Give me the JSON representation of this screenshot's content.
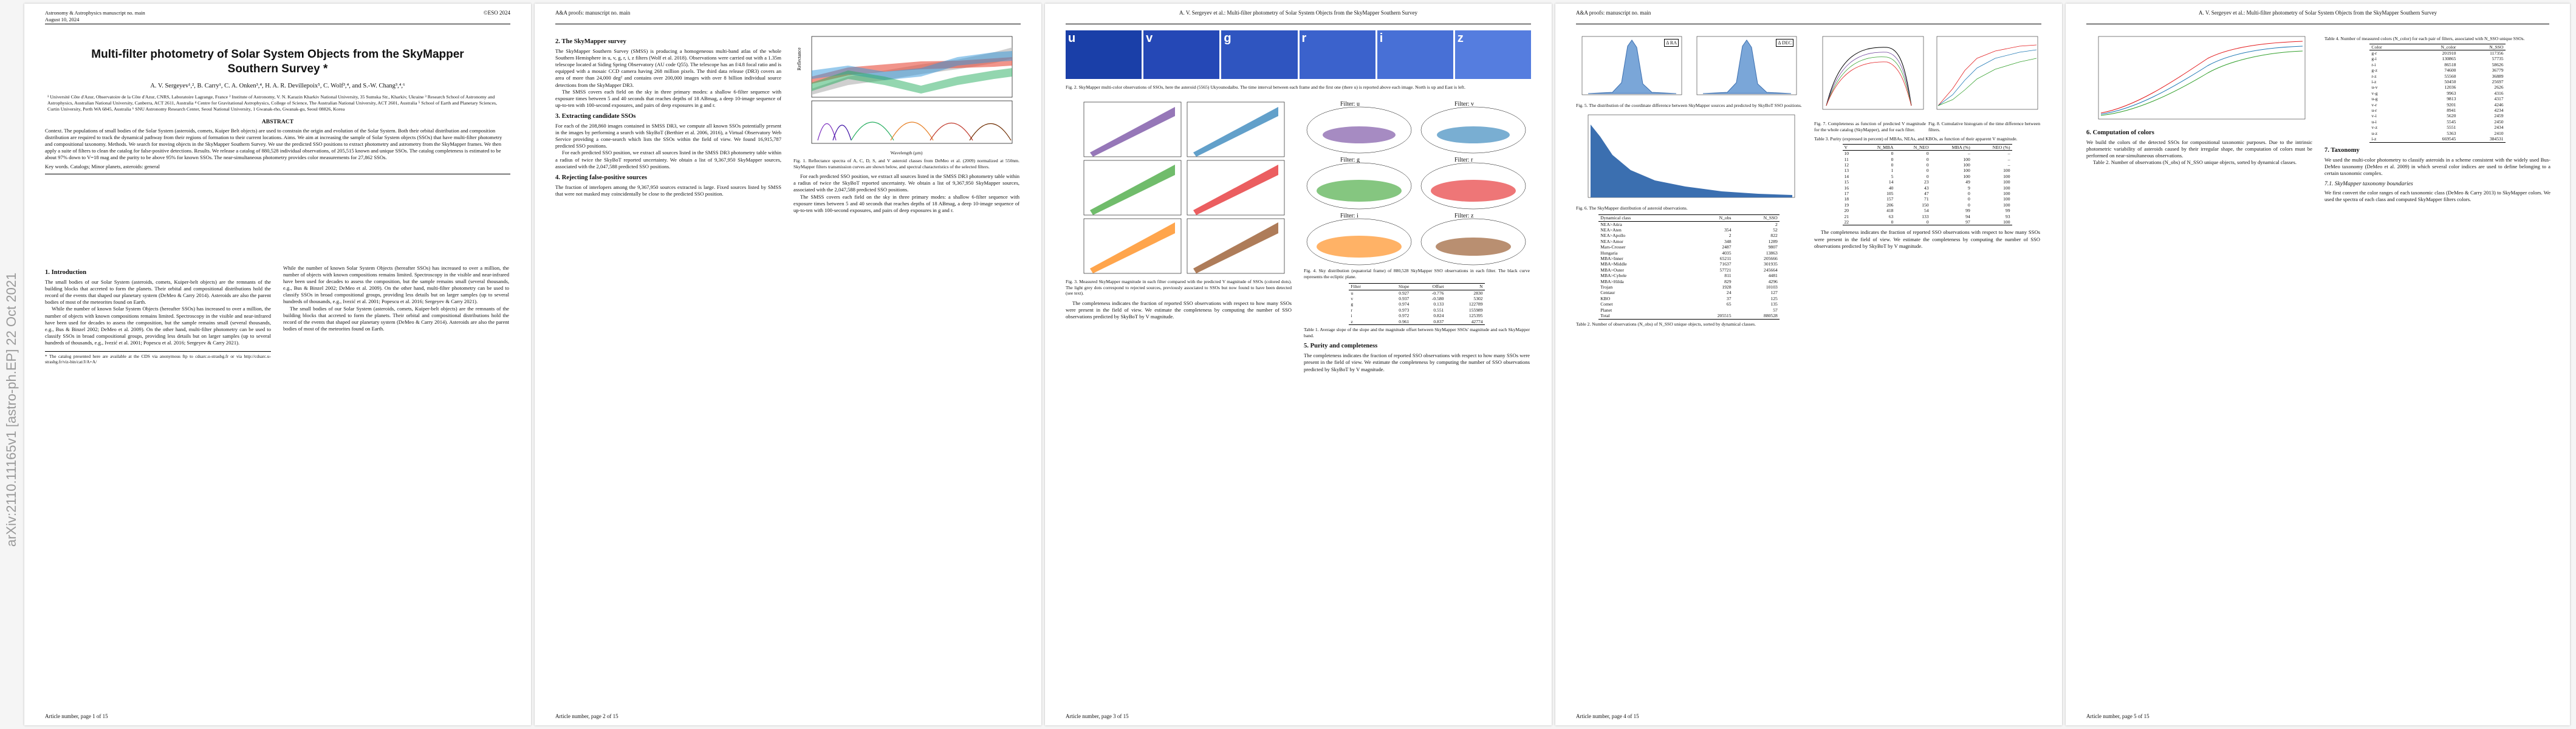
{
  "arxiv_stamp": "arXiv:2110.11165v1  [astro-ph.EP]  22 Oct 2021",
  "pages": [
    {
      "header_left": "Astronomy & Astrophysics manuscript no. main",
      "header_date": "August 10, 2024",
      "header_right": "©ESO 2024",
      "title": "Multi-filter photometry of Solar System Objects from the SkyMapper Southern Survey *",
      "authors": "A. V. Sergeyev¹,², B. Carry¹, C. A. Onken³,⁴, H. A. R. Devillepoix⁵, C. Wolf³,⁴, and S.-W. Chang³,⁴,⁶",
      "affiliations": "¹ Université Côte d'Azur, Observatoire de la Côte d'Azur, CNRS, Laboratoire Lagrange, France  ² Institute of Astronomy, V. N. Karazin Kharkiv National University, 35 Sumska Str., Kharkiv, Ukraine  ³ Research School of Astronomy and Astrophysics, Australian National University, Canberra, ACT 2611, Australia  ⁴ Centre for Gravitational Astrophysics, College of Science, The Australian National University, ACT 2601, Australia  ⁵ School of Earth and Planetary Sciences, Curtin University, Perth WA 6845, Australia  ⁶ SNU Astronomy Research Center, Seoul National University, 1 Gwanak-rho, Gwanak-gu, Seoul 08826, Korea",
      "abstract_title": "ABSTRACT",
      "abstract": "Context. The populations of small bodies of the Solar System (asteroids, comets, Kuiper Belt objects) are used to constrain the origin and evolution of the Solar System. Both their orbital distribution and composition distribution are required to track the dynamical pathway from their regions of formation to their current locations. Aims. We aim at increasing the sample of Solar System objects (SSOs) that have multi-filter photometry and compositional taxonomy. Methods. We search for moving objects in the SkyMapper Southern Survey. We use the predicted SSO positions to extract photometry and astrometry from the SkyMapper frames. We then apply a suite of filters to clean the catalog for false-positive detections. Results. We release a catalog of 880,528 individual observations, of 205,515 known and unique SSOs. The catalog completeness is estimated to be about 97% down to V=18 mag and the purity to be above 95% for known SSOs. The near-simultaneous photometry provides color measurements for 27,862 SSOs.",
      "keywords": "Key words. Catalogs; Minor planets, asteroids: general",
      "section1": "1. Introduction",
      "intro_p1": "The small bodies of our Solar System (asteroids, comets, Kuiper-belt objects) are the remnants of the building blocks that accreted to form the planets. Their orbital and compositional distributions hold the record of the events that shaped our planetary system (DeMeo & Carry 2014). Asteroids are also the parent bodies of most of the meteorites found on Earth.",
      "intro_p2": "While the number of known Solar System Objects (hereafter SSOs) has increased to over a million, the number of objects with known compositions remains limited. Spectroscopy in the visible and near-infrared have been used for decades to assess the composition, but the sample remains small (several thousands, e.g., Bus & Binzel 2002; DeMeo et al. 2009). On the other hand, multi-filter photometry can be used to classify SSOs in broad compositional groups, providing less details but on larger samples (up to several hundreds of thousands, e.g., Ivezić et al. 2001; Popescu et al. 2016; Sergeyev & Carry 2021).",
      "footnote": "* The catalog presented here are available at the CDS via anonymous ftp to cdsarc.u-strasbg.fr or via http://cdsarc.u-strasbg.fr/viz-bin/cat/J/A+A/",
      "footer": "Article number, page 1 of 15"
    },
    {
      "header_left": "A&A proofs: manuscript no. main",
      "header_right": "",
      "section2": "2. The SkyMapper survey",
      "survey_p1": "The SkyMapper Southern Survey (SMSS) is producing a homogeneous multi-band atlas of the whole Southern Hemisphere in u, v, g, r, i, z filters (Wolf et al. 2018). Observations were carried out with a 1.35m telescope located at Siding Spring Observatory (AU code Q55). The telescope has an f/4.8 focal ratio and is equipped with a mosaic CCD camera having 268 million pixels. The third data release (DR3) covers an area of more than 24,000 deg² and contains over 200,000 images with over 8 billion individual source detections from the SkyMapper DR3.",
      "survey_p2": "The SMSS covers each field on the sky in three primary modes: a shallow 6-filter sequence with exposure times between 5 and 40 seconds that reaches depths of 18 ABmag, a deep 10-image sequence of up-to-ten with 100-second exposures, and pairs of deep exposures in g and r.",
      "section3": "3. Extracting candidate SSOs",
      "extract_p1": "For each of the 208,860 images contained in SMSS DR3, we compute all known SSOs potentially present in the images by performing a search with SkyBoT (Berthier et al. 2006, 2016), a Virtual Observatory Web Service providing a cone-search which lists the SSOs within the field of view. We found 16,915,787 predicted SSO positions.",
      "extract_p2": "For each predicted SSO position, we extract all sources listed in the SMSS DR3 photometry table within a radius of twice the SkyBoT reported uncertainty. We obtain a list of 9,367,950 SkyMapper sources, associated with the 2,047,588 predicted SSO positions.",
      "section4": "4. Rejecting false-positive sources",
      "reject_p1": "The fraction of interlopers among the 9,367,950 sources extracted is large. Fixed sources listed by SMSS that were not masked may coincidentally be close to the predicted SSO position.",
      "fig1_caption": "Fig. 1. Reflectance spectra of A, C, D, S, and V asteroid classes from DeMeo et al. (2009) normalized at 550nm. SkyMapper filters transmission curves are shown below, and spectral characteristics of the selected filters.",
      "fig1_ylabel": "Reflectance",
      "fig1_xlabel": "Wavelength (µm)",
      "fig1_classes": [
        "A",
        "C",
        "D",
        "S",
        "V"
      ],
      "footer": "Article number, page 2 of 15"
    },
    {
      "header_center": "A. V. Sergeyev et al.: Multi-filter photometry of Solar System Objects from the SkyMapper Southern Survey",
      "stamp_labels": [
        "u",
        "v",
        "g",
        "r",
        "i",
        "z"
      ],
      "fig2_caption": "Fig. 2. SkyMapper multi-color observations of SSOs, here the asteroid (5565) Ukyounodaibu. The time interval between each frame and the first one (there u) is reported above each image. North is up and East is left.",
      "filter_labels": [
        "Filter: u",
        "Filter: v",
        "Filter: g",
        "Filter: r",
        "Filter: i",
        "Filter: z"
      ],
      "fig3_caption": "Fig. 3. Measured SkyMapper magnitude in each filter compared with the predicted V magnitude of SSOs (colored dots). The light grey dots correspond to rejected sources, previously associated to SSOs but now found to have been detected (see text).",
      "fig4_caption": "Fig. 4. Sky distribution (equatorial frame) of 880,528 SkyMapper SSO observations in each filter. The black curve represents the ecliptic plane.",
      "table1_head": [
        "Filter",
        "Slope",
        "Offset",
        "N"
      ],
      "table1_rows": [
        [
          "u",
          "0.927",
          "-0.776",
          "2830"
        ],
        [
          "v",
          "0.937",
          "-0.580",
          "5302"
        ],
        [
          "g",
          "0.974",
          "0.133",
          "122789"
        ],
        [
          "r",
          "0.973",
          "0.551",
          "155989"
        ],
        [
          "i",
          "0.972",
          "0.824",
          "125395"
        ],
        [
          "z",
          "0.961",
          "0.837",
          "42774"
        ]
      ],
      "table1_caption": "Table 1. Average slope of the slope and the magnitude offset between SkyMapper SSOs' magnitude and each SkyMapper band.",
      "section5": "5. Purity and completeness",
      "purity_p1": "The completeness indicates the fraction of reported SSO observations with respect to how many SSOs were present in the field of view. We estimate the completeness by computing the number of SSO observations predicted by SkyBoT by V magnitude.",
      "footer": "Article number, page 3 of 15"
    },
    {
      "header_left": "A&A proofs: manuscript no. main",
      "fig5_caption": "Fig. 5. The distribution of the coordinate difference between SkyMapper sources and predicted by SkyBoT SSO positions.",
      "fig5_labels": [
        "Δ RA",
        "Δ DEC"
      ],
      "fig6_caption": "Fig. 6. The SkyMapper distribution of asteroid observations.",
      "table2_head": [
        "Dynamical class",
        "N_obs",
        "N_SSO"
      ],
      "table2_rows": [
        [
          "NEA>Atira",
          "",
          "2"
        ],
        [
          "NEA>Aten",
          "354",
          "52"
        ],
        [
          "NEA>Apollo",
          "2",
          "822"
        ],
        [
          "NEA>Amor",
          "348",
          "1289"
        ],
        [
          "Mars-Crosser",
          "2487",
          "9807"
        ],
        [
          "Hungaria",
          "4035",
          "13863"
        ],
        [
          "MBA>Inner",
          "65211",
          "205666"
        ],
        [
          "MBA>Middle",
          "71637",
          "301935"
        ],
        [
          "MBA>Outer",
          "57721",
          "245664"
        ],
        [
          "MBA>Cybele",
          "811",
          "4481"
        ],
        [
          "MBA>Hilda",
          "829",
          "4296"
        ],
        [
          "Trojan",
          "1928",
          "10103"
        ],
        [
          "Centaur",
          "24",
          "127"
        ],
        [
          "KBO",
          "37",
          "125"
        ],
        [
          "Comet",
          "65",
          "135"
        ],
        [
          "Planet",
          "",
          "57"
        ],
        [
          "Total",
          "205515",
          "880528"
        ]
      ],
      "table2_caption": "Table 2. Number of observations (N_obs) of N_SSO unique objects, sorted by dynamical classes.",
      "table3_head": [
        "V",
        "N_MBA",
        "N_NEO",
        "MBA (%)",
        "NEO (%)"
      ],
      "table3_rows": [
        [
          "10",
          "0",
          "0",
          "–",
          "–"
        ],
        [
          "11",
          "0",
          "0",
          "100",
          "–"
        ],
        [
          "12",
          "0",
          "0",
          "100",
          "–"
        ],
        [
          "13",
          "1",
          "0",
          "100",
          "100"
        ],
        [
          "14",
          "5",
          "0",
          "100",
          "100"
        ],
        [
          "15",
          "14",
          "23",
          "49",
          "100"
        ],
        [
          "16",
          "40",
          "43",
          "9",
          "100"
        ],
        [
          "17",
          "105",
          "47",
          "0",
          "100"
        ],
        [
          "18",
          "157",
          "71",
          "0",
          "100"
        ],
        [
          "19",
          "206",
          "150",
          "0",
          "100"
        ],
        [
          "20",
          "418",
          "54",
          "99",
          "99"
        ],
        [
          "21",
          "63",
          "133",
          "94",
          "93"
        ],
        [
          "22",
          "0",
          "0",
          "97",
          "100"
        ]
      ],
      "table3_caption": "Table 3. Purity (expressed in percent) of MBAs, NEAs, and KBOs, as function of their apparent V magnitude.",
      "fig7_caption": "Fig. 7. Completeness as function of predicted V magnitude for the whole catalog (SkyMapper), and for each filter.",
      "fig7_legend": [
        "SkyMapper",
        "u",
        "v",
        "g",
        "r",
        "i",
        "z"
      ],
      "fig8_caption": "Fig. 8. Cumulative histogram of the time difference between filters.",
      "footer": "Article number, page 4 of 15"
    },
    {
      "header_center": "A. V. Sergeyev et al.: Multi-filter photometry of Solar System Objects from the SkyMapper Southern Survey",
      "table4_caption": "Table 4. Number of measured colors (N_color) for each pair of filters, associated with N_SSO unique SSOs.",
      "table4_head": [
        "Color",
        "N_color",
        "N_SSO"
      ],
      "table4_rows": [
        [
          "g-r",
          "201910",
          "117356"
        ],
        [
          "g-i",
          "130865",
          "57735"
        ],
        [
          "r-i",
          "86518",
          "58626"
        ],
        [
          "g-z",
          "74600",
          "36779"
        ],
        [
          "r-z",
          "55560",
          "36889"
        ],
        [
          "i-z",
          "50450",
          "25697"
        ],
        [
          "u-v",
          "12036",
          "2626"
        ],
        [
          "v-g",
          "9963",
          "4316"
        ],
        [
          "u-g",
          "9813",
          "4317"
        ],
        [
          "v-r",
          "9201",
          "4246"
        ],
        [
          "u-r",
          "8941",
          "4234"
        ],
        [
          "v-i",
          "5620",
          "2459"
        ],
        [
          "u-i",
          "5545",
          "2450"
        ],
        [
          "v-z",
          "5551",
          "2434"
        ],
        [
          "u-z",
          "5363",
          "2410"
        ],
        [
          "i-z",
          "669545",
          "384531"
        ]
      ],
      "section6": "6. Computation of colors",
      "colors_p1": "We build the colors of the detected SSOs for compositional taxonomic purposes. Due to the intrinsic photometric variability of asteroids caused by their irregular shape, the computation of colors must be performed on near-simultaneous observations.",
      "section7": "7. Taxonomy",
      "tax_p1": "We used the multi-color photometry to classify asteroids in a scheme consistent with the widely used Bus-DeMeo taxonomy (DeMeo et al. 2009) in which several color indices are used to define belonging to a certain taxonomic complex.",
      "sub71": "7.1. SkyMapper taxonomy boundaries",
      "tax_p2": "We first convert the color ranges of each taxonomic class (DeMeo & Carry 2013) to SkyMapper colors. We used the spectra of each class and computed SkyMapper filters colors.",
      "footer": "Article number, page 5 of 15"
    }
  ]
}
